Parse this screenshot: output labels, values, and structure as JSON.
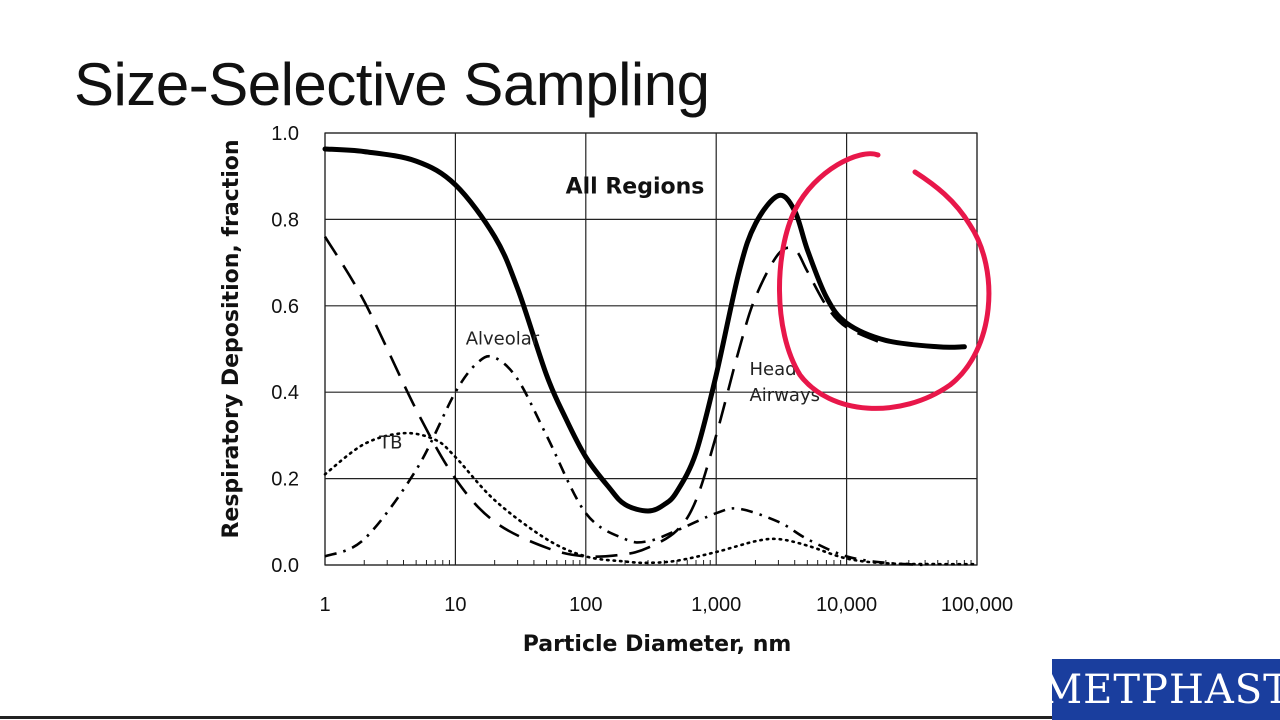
{
  "slide": {
    "title": "Size-Selective Sampling",
    "logo_text": "METPHAST"
  },
  "colors": {
    "annotation_circle": "#e8174a",
    "logo_background": "#1a3e9e",
    "curves": "#000000"
  },
  "chart_data": {
    "type": "line",
    "title": "",
    "xlabel": "Particle Diameter, nm",
    "ylabel": "Respiratory Deposition, fraction",
    "x_scale": "log",
    "xlim": [
      1,
      100000
    ],
    "ylim": [
      0,
      1.0
    ],
    "grid": true,
    "x_ticks": [
      {
        "value": 1,
        "label": "1"
      },
      {
        "value": 10,
        "label": "10"
      },
      {
        "value": 100,
        "label": "100"
      },
      {
        "value": 1000,
        "label": "1,000"
      },
      {
        "value": 10000,
        "label": "10,000"
      },
      {
        "value": 100000,
        "label": "100,000"
      }
    ],
    "y_ticks": [
      {
        "value": 0.0,
        "label": "0.0"
      },
      {
        "value": 0.2,
        "label": "0.2"
      },
      {
        "value": 0.4,
        "label": "0.4"
      },
      {
        "value": 0.6,
        "label": "0.6"
      },
      {
        "value": 0.8,
        "label": "0.8"
      },
      {
        "value": 1.0,
        "label": "1.0"
      }
    ],
    "series": [
      {
        "name": "All Regions",
        "style": "solid",
        "x": [
          1,
          2,
          5,
          10,
          20,
          30,
          50,
          70,
          100,
          150,
          200,
          300,
          400,
          500,
          700,
          1000,
          1500,
          2000,
          3000,
          4000,
          5000,
          7000,
          10000,
          20000,
          50000,
          80000
        ],
        "y": [
          0.963,
          0.957,
          0.935,
          0.88,
          0.76,
          0.64,
          0.44,
          0.34,
          0.25,
          0.18,
          0.14,
          0.125,
          0.14,
          0.17,
          0.26,
          0.44,
          0.68,
          0.79,
          0.855,
          0.82,
          0.73,
          0.62,
          0.56,
          0.52,
          0.505,
          0.505
        ]
      },
      {
        "name": "Head Airways",
        "style": "dashed",
        "x": [
          1,
          2,
          5,
          10,
          20,
          50,
          100,
          200,
          300,
          500,
          700,
          1000,
          1500,
          2000,
          3000,
          4000,
          5000,
          7000,
          10000,
          20000
        ],
        "y": [
          0.76,
          0.61,
          0.36,
          0.2,
          0.1,
          0.04,
          0.02,
          0.025,
          0.04,
          0.08,
          0.15,
          0.3,
          0.5,
          0.62,
          0.72,
          0.73,
          0.68,
          0.6,
          0.55,
          0.51
        ]
      },
      {
        "name": "Alveolar",
        "style": "dashdot",
        "x": [
          1,
          2,
          5,
          10,
          15,
          20,
          30,
          50,
          100,
          200,
          300,
          500,
          1000,
          1500,
          3000,
          5000,
          10000,
          20000,
          40000
        ],
        "y": [
          0.02,
          0.06,
          0.22,
          0.4,
          0.47,
          0.48,
          0.43,
          0.3,
          0.12,
          0.06,
          0.055,
          0.08,
          0.12,
          0.13,
          0.1,
          0.06,
          0.02,
          0.005,
          0.0
        ]
      },
      {
        "name": "TB",
        "style": "dotted",
        "x": [
          1,
          2,
          4,
          7,
          10,
          20,
          50,
          100,
          200,
          300,
          500,
          1000,
          2000,
          3000,
          5000,
          10000,
          20000,
          50000,
          100000
        ],
        "y": [
          0.21,
          0.28,
          0.305,
          0.29,
          0.25,
          0.15,
          0.06,
          0.02,
          0.008,
          0.005,
          0.01,
          0.03,
          0.055,
          0.06,
          0.045,
          0.015,
          0.004,
          0.002,
          0.002
        ]
      }
    ],
    "annotations": [
      {
        "text": "All Regions",
        "x": 70,
        "y": 0.86,
        "bold": true
      },
      {
        "text": "Alveolar",
        "x": 12,
        "y": 0.51,
        "bold": false
      },
      {
        "text": "Head",
        "x": 1800,
        "y": 0.44,
        "bold": false
      },
      {
        "text": "Airways",
        "x": 1800,
        "y": 0.38,
        "bold": false
      },
      {
        "text": "TB",
        "x": 2.6,
        "y": 0.27,
        "bold": false
      }
    ]
  }
}
